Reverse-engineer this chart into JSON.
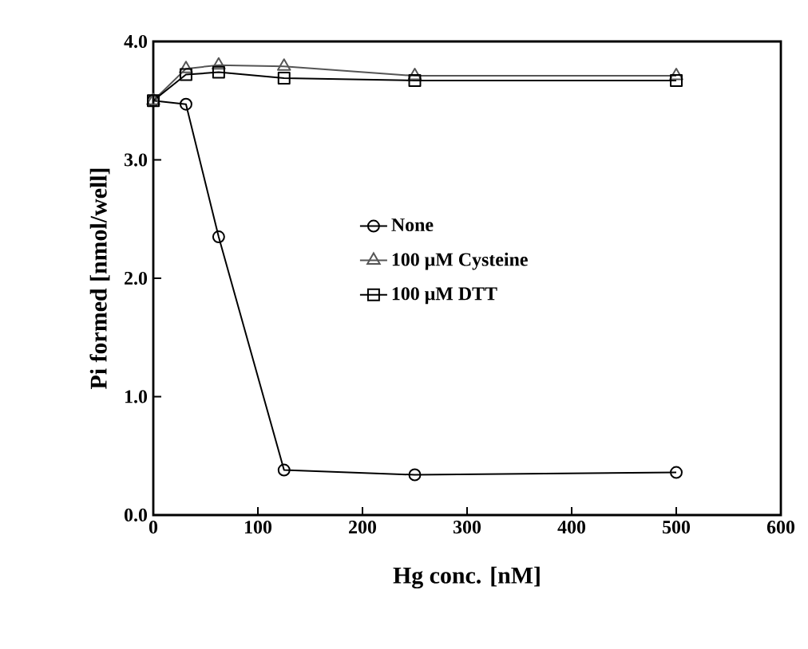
{
  "chart_data": {
    "type": "line",
    "xlabel": "Hg conc. [nM]",
    "ylabel": "Pi formed [nmol/well]",
    "xlim": [
      0,
      600
    ],
    "ylim": [
      0,
      4
    ],
    "xticks": [
      0,
      100,
      200,
      300,
      400,
      500,
      600
    ],
    "yticks": [
      {
        "value": 0,
        "label": "0.0"
      },
      {
        "value": 1,
        "label": "1.0"
      },
      {
        "value": 2,
        "label": "2.0"
      },
      {
        "value": 3,
        "label": "3.0"
      },
      {
        "value": 4,
        "label": "4.0"
      }
    ],
    "x": [
      0,
      31.25,
      62.5,
      125,
      250,
      500
    ],
    "legend": "center right",
    "grid": false,
    "line_style": "solid",
    "series": [
      {
        "name": "None",
        "color": "#000000",
        "marker": "circle",
        "values": [
          3.5,
          3.47,
          2.35,
          0.38,
          0.34,
          0.36
        ]
      },
      {
        "name": "100 μM Cysteine",
        "color": "#555555",
        "marker": "triangle",
        "values": [
          3.5,
          3.77,
          3.8,
          3.79,
          3.71,
          3.71
        ]
      },
      {
        "name": "100 μM DTT",
        "color": "#000000",
        "marker": "square",
        "values": [
          3.5,
          3.72,
          3.74,
          3.69,
          3.67,
          3.67
        ]
      }
    ]
  }
}
